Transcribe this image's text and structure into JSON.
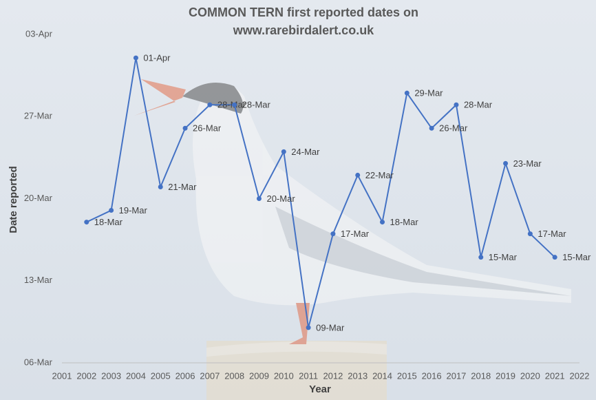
{
  "chart_data": {
    "type": "line",
    "title": [
      "COMMON TERN first reported dates on",
      "www.rarebirdalert.co.uk"
    ],
    "x_label": "Year",
    "y_label": "Date reported",
    "x": [
      2002,
      2003,
      2004,
      2005,
      2006,
      2007,
      2008,
      2009,
      2010,
      2011,
      2012,
      2013,
      2014,
      2015,
      2016,
      2017,
      2018,
      2019,
      2020,
      2021
    ],
    "values": [
      18,
      19,
      32,
      21,
      26,
      28,
      28,
      20,
      24,
      9,
      17,
      22,
      18,
      29,
      26,
      28,
      15,
      23,
      17,
      15
    ],
    "value_labels": [
      "18-Mar",
      "19-Mar",
      "01-Apr",
      "21-Mar",
      "26-Mar",
      "28-Mar",
      "28-Mar",
      "20-Mar",
      "24-Mar",
      "09-Mar",
      "17-Mar",
      "22-Mar",
      "18-Mar",
      "29-Mar",
      "26-Mar",
      "28-Mar",
      "15-Mar",
      "23-Mar",
      "17-Mar",
      "15-Mar"
    ],
    "color": "#4472c4",
    "xlim": [
      2001,
      2022
    ],
    "xticks": [
      2001,
      2002,
      2003,
      2004,
      2005,
      2006,
      2007,
      2008,
      2009,
      2010,
      2011,
      2012,
      2013,
      2014,
      2015,
      2016,
      2017,
      2018,
      2019,
      2020,
      2021,
      2022
    ],
    "ylim": [
      6,
      34
    ],
    "yticks": [
      {
        "value": 6,
        "label": "06-Mar"
      },
      {
        "value": 13,
        "label": "13-Mar"
      },
      {
        "value": 20,
        "label": "20-Mar"
      },
      {
        "value": 27,
        "label": "27-Mar"
      },
      {
        "value": 34,
        "label": "03-Apr"
      }
    ],
    "grid": false
  }
}
